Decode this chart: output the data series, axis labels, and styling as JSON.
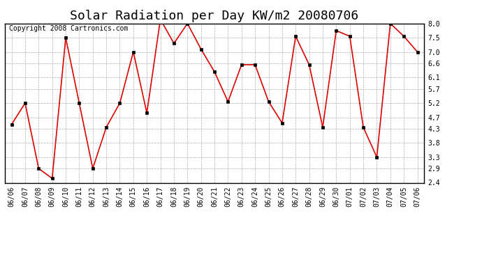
{
  "title": "Solar Radiation per Day KW/m2 20080706",
  "copyright": "Copyright 2008 Cartronics.com",
  "dates": [
    "06/06",
    "06/07",
    "06/08",
    "06/09",
    "06/10",
    "06/11",
    "06/12",
    "06/13",
    "06/14",
    "06/15",
    "06/16",
    "06/17",
    "06/18",
    "06/19",
    "06/20",
    "06/21",
    "06/22",
    "06/23",
    "06/24",
    "06/25",
    "06/26",
    "06/27",
    "06/28",
    "06/29",
    "06/30",
    "07/01",
    "07/02",
    "07/03",
    "07/04",
    "07/05",
    "07/06"
  ],
  "values": [
    4.45,
    5.2,
    2.9,
    2.55,
    7.5,
    5.2,
    2.9,
    4.35,
    5.2,
    7.0,
    4.85,
    8.15,
    7.3,
    8.0,
    7.1,
    6.3,
    5.25,
    6.55,
    6.55,
    5.25,
    4.5,
    7.55,
    6.55,
    4.35,
    7.75,
    7.55,
    4.35,
    3.3,
    8.0,
    7.55,
    7.0
  ],
  "line_color": "#dd0000",
  "marker_color": "#000000",
  "bg_color": "#ffffff",
  "plot_bg_color": "#ffffff",
  "grid_color": "#999999",
  "yticks": [
    2.4,
    2.9,
    3.3,
    3.8,
    4.3,
    4.7,
    5.2,
    5.7,
    6.1,
    6.6,
    7.0,
    7.5,
    8.0
  ],
  "ylim_min": 2.4,
  "ylim_max": 8.0,
  "title_fontsize": 13,
  "tick_fontsize": 7,
  "copyright_fontsize": 7
}
